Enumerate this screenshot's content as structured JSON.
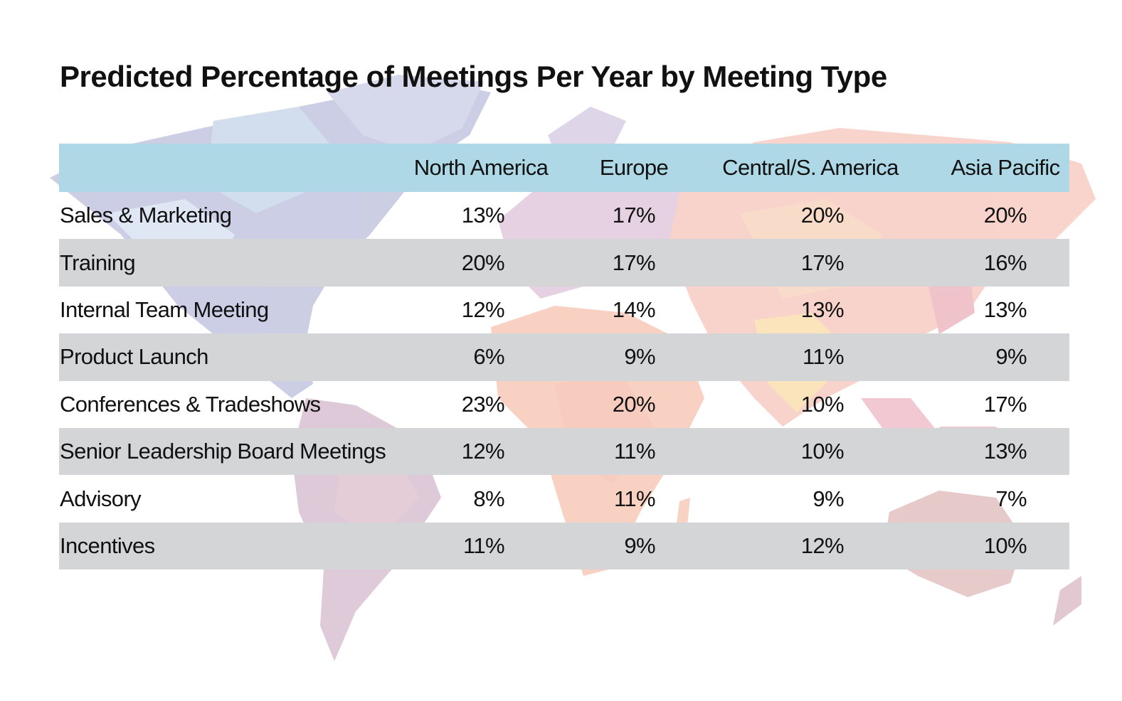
{
  "title": "Predicted Percentage of Meetings Per Year by Meeting Type",
  "colors": {
    "header_bg": "#aed8e6",
    "alt_row_bg": "#d3d5d6",
    "text": "#111111"
  },
  "chart_data": {
    "type": "table",
    "title": "Predicted Percentage of Meetings Per Year by Meeting Type",
    "columns": [
      "North America",
      "Europe",
      "Central/S. America",
      "Asia Pacific"
    ],
    "rows": [
      {
        "label": "Sales & Marketing",
        "values": [
          "13%",
          "17%",
          "20%",
          "20%"
        ]
      },
      {
        "label": "Training",
        "values": [
          "20%",
          "17%",
          "17%",
          "16%"
        ]
      },
      {
        "label": "Internal Team Meeting",
        "values": [
          "12%",
          "14%",
          "13%",
          "13%"
        ]
      },
      {
        "label": "Product Launch",
        "values": [
          "6%",
          "9%",
          "11%",
          "9%"
        ]
      },
      {
        "label": "Conferences & Tradeshows",
        "values": [
          "23%",
          "20%",
          "10%",
          "17%"
        ]
      },
      {
        "label": "Senior Leadership Board Meetings",
        "values": [
          "12%",
          "11%",
          "10%",
          "13%"
        ]
      },
      {
        "label": "Advisory",
        "values": [
          "8%",
          "11%",
          "9%",
          "7%"
        ]
      },
      {
        "label": "Incentives",
        "values": [
          "11%",
          "9%",
          "12%",
          "10%"
        ]
      }
    ]
  }
}
